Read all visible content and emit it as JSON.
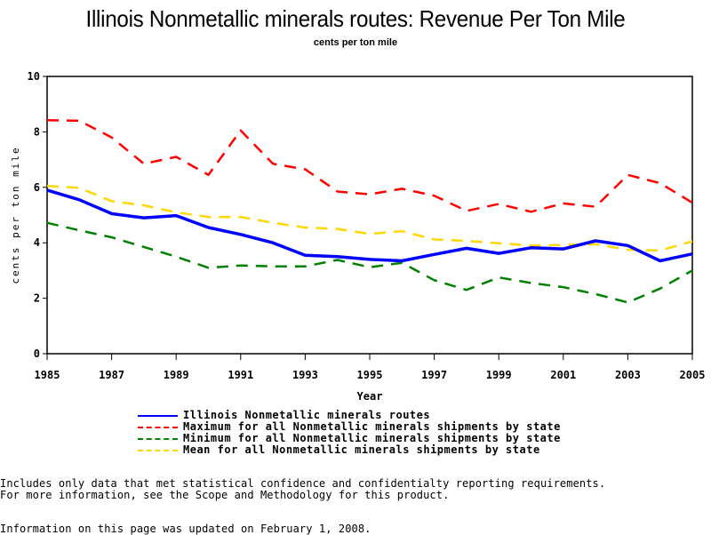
{
  "page": {
    "notes": [
      "Includes only data that met statistical confidence and confidentialty reporting requirements.",
      "For more information, see the Scope and Methodology for this product."
    ],
    "updated": "Information on this page was updated on February 1, 2008."
  },
  "chart_data": {
    "type": "line",
    "title": "Illinois Nonmetallic minerals routes: Revenue Per Ton Mile",
    "subtitle": "cents per ton mile",
    "xlabel": "Year",
    "ylabel": "cents per ton mile",
    "xlim": [
      1985,
      2005
    ],
    "ylim": [
      0,
      10
    ],
    "xticks": [
      "1985",
      "1987",
      "1989",
      "1991",
      "1993",
      "1995",
      "1997",
      "1999",
      "2001",
      "2003",
      "2005"
    ],
    "yticks": [
      "0",
      "2",
      "4",
      "6",
      "8",
      "10"
    ],
    "grid": false,
    "legend_position": "bottom",
    "x": [
      1985,
      1986,
      1987,
      1988,
      1989,
      1990,
      1991,
      1992,
      1993,
      1994,
      1995,
      1996,
      1997,
      1998,
      1999,
      2000,
      2001,
      2002,
      2003,
      2004,
      2005
    ],
    "series": [
      {
        "name": "Illinois Nonmetallic minerals routes",
        "color": "#0000ff",
        "style": "solid",
        "values": [
          5.9,
          5.55,
          5.05,
          4.9,
          4.98,
          4.55,
          4.3,
          4.0,
          3.55,
          3.5,
          3.4,
          3.35,
          3.58,
          3.8,
          3.62,
          3.82,
          3.78,
          4.07,
          3.9,
          3.35,
          3.6
        ]
      },
      {
        "name": "Maximum for all Nonmetallic minerals shipments by state",
        "color": "#ff0000",
        "style": "dashed",
        "values": [
          8.42,
          8.4,
          7.8,
          6.85,
          7.1,
          6.45,
          8.05,
          6.85,
          6.65,
          5.85,
          5.75,
          5.95,
          5.7,
          5.15,
          5.4,
          5.12,
          5.42,
          5.3,
          6.45,
          6.15,
          5.45
        ]
      },
      {
        "name": "Minimum for all Nonmetallic minerals shipments by state",
        "color": "#008000",
        "style": "dashed",
        "values": [
          4.72,
          4.45,
          4.2,
          3.85,
          3.5,
          3.1,
          3.18,
          3.15,
          3.15,
          3.38,
          3.12,
          3.28,
          2.65,
          2.3,
          2.75,
          2.55,
          2.4,
          2.15,
          1.85,
          2.35,
          3.0
        ]
      },
      {
        "name": "Mean for all Nonmetallic minerals shipments by state",
        "color": "#ffd700",
        "style": "dashed",
        "values": [
          6.05,
          5.98,
          5.5,
          5.35,
          5.1,
          4.93,
          4.93,
          4.72,
          4.55,
          4.5,
          4.32,
          4.42,
          4.12,
          4.07,
          3.98,
          3.9,
          3.92,
          3.95,
          3.75,
          3.72,
          4.05
        ]
      }
    ]
  }
}
